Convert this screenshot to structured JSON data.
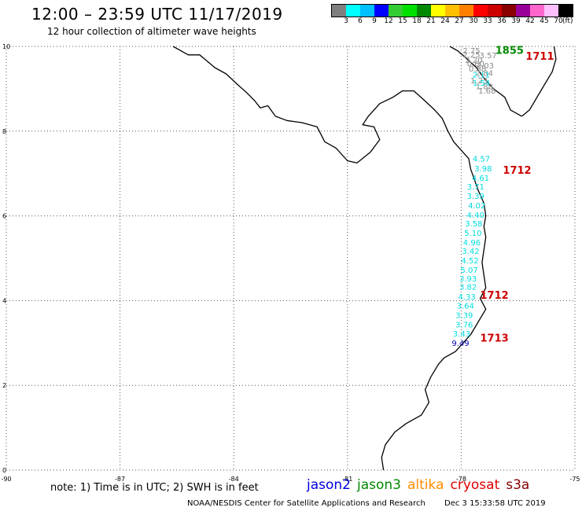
{
  "header": {
    "title": "12:00 – 23:59 UTC 11/17/2019",
    "subtitle": "12 hour collection of altimeter wave heights"
  },
  "color_scale": {
    "labels": [
      "3",
      "6",
      "9",
      "12",
      "15",
      "18",
      "21",
      "24",
      "27",
      "30",
      "33",
      "36",
      "39",
      "42",
      "45",
      "70"
    ],
    "unit": "(ft)",
    "colors": [
      "#7f7f7f",
      "#00ffff",
      "#00bfff",
      "#0000ff",
      "#33cc33",
      "#00e000",
      "#008800",
      "#ffff00",
      "#ffbf00",
      "#ff8000",
      "#ff0000",
      "#cc0000",
      "#880000",
      "#990099",
      "#ff66cc",
      "#ffbfff",
      "#000000"
    ]
  },
  "map": {
    "lon_ticks": [
      "-90",
      "-87",
      "-84",
      "-81",
      "-78",
      "-75"
    ],
    "lat_ticks": [
      "10",
      "8",
      "6",
      "4",
      "2",
      "0"
    ],
    "time_labels": [
      {
        "text": "1855",
        "lon": -77.1,
        "lat": 9.82,
        "color": "#008800"
      },
      {
        "text": "1711",
        "lon": -76.3,
        "lat": 9.68,
        "color": "#cc0000"
      },
      {
        "text": "1712",
        "lon": -76.9,
        "lat": 6.99,
        "color": "#cc0000"
      },
      {
        "text": "1712",
        "lon": -77.5,
        "lat": 4.04,
        "color": "#cc0000"
      },
      {
        "text": "1713",
        "lon": -77.5,
        "lat": 3.03,
        "color": "#cc0000"
      }
    ],
    "gray_track": [
      {
        "text": "2.75",
        "lon": -77.96,
        "lat": 9.83
      },
      {
        "text": "2.25",
        "lon": -77.96,
        "lat": 9.74
      },
      {
        "text": "3.57",
        "lon": -77.52,
        "lat": 9.72
      },
      {
        "text": "2.20",
        "lon": -77.9,
        "lat": 9.61
      },
      {
        "text": "0.60",
        "lon": -77.85,
        "lat": 9.53
      },
      {
        "text": "2.03",
        "lon": -77.6,
        "lat": 9.48
      },
      {
        "text": "0.88",
        "lon": -77.8,
        "lat": 9.41
      },
      {
        "text": "2.84",
        "lon": -77.62,
        "lat": 9.3
      },
      {
        "text": "1.23",
        "lon": -77.76,
        "lat": 9.13
      },
      {
        "text": "1.88",
        "lon": -77.62,
        "lat": 8.99
      },
      {
        "text": "1.68",
        "lon": -77.55,
        "lat": 8.89
      }
    ],
    "cyan_track": [
      {
        "text": "2.11",
        "lon": -77.7,
        "lat": 9.27,
        "color": "#00dddd"
      },
      {
        "text": "1.54",
        "lon": -77.7,
        "lat": 9.07,
        "color": "#00dddd"
      },
      {
        "text": "4.57",
        "lon": -77.7,
        "lat": 7.28,
        "color": "#00dddd"
      },
      {
        "text": "3.98",
        "lon": -77.65,
        "lat": 7.05,
        "color": "#00dddd"
      },
      {
        "text": "4.61",
        "lon": -77.72,
        "lat": 6.83,
        "color": "#00dddd"
      },
      {
        "text": "3.71",
        "lon": -77.85,
        "lat": 6.62,
        "color": "#00dddd"
      },
      {
        "text": "3.39",
        "lon": -77.85,
        "lat": 6.4,
        "color": "#00dddd"
      },
      {
        "text": "4.02",
        "lon": -77.82,
        "lat": 6.18,
        "color": "#00dddd"
      },
      {
        "text": "4.40",
        "lon": -77.85,
        "lat": 5.96,
        "color": "#00dddd"
      },
      {
        "text": "3.58",
        "lon": -77.9,
        "lat": 5.75,
        "color": "#00dddd"
      },
      {
        "text": "5.10",
        "lon": -77.92,
        "lat": 5.53,
        "color": "#00dddd"
      },
      {
        "text": "4.96",
        "lon": -77.95,
        "lat": 5.31,
        "color": "#00dddd"
      },
      {
        "text": "3.42",
        "lon": -77.98,
        "lat": 5.1,
        "color": "#00dddd"
      },
      {
        "text": "4.52",
        "lon": -78.0,
        "lat": 4.88,
        "color": "#00dddd"
      },
      {
        "text": "5.07",
        "lon": -78.02,
        "lat": 4.66,
        "color": "#00dddd"
      },
      {
        "text": "3.93",
        "lon": -78.05,
        "lat": 4.45,
        "color": "#00dddd"
      },
      {
        "text": "3.82",
        "lon": -78.05,
        "lat": 4.26,
        "color": "#00dddd"
      },
      {
        "text": "4.33",
        "lon": -78.08,
        "lat": 4.03,
        "color": "#00dddd"
      },
      {
        "text": "3.64",
        "lon": -78.12,
        "lat": 3.81,
        "color": "#00dddd"
      },
      {
        "text": "3.39",
        "lon": -78.15,
        "lat": 3.59,
        "color": "#00dddd"
      },
      {
        "text": "3.76",
        "lon": -78.15,
        "lat": 3.37,
        "color": "#00dddd"
      },
      {
        "text": "3.43",
        "lon": -78.22,
        "lat": 3.15,
        "color": "#00dddd"
      },
      {
        "text": "9.49",
        "lon": -78.25,
        "lat": 2.93,
        "color": "#0000aa"
      }
    ]
  },
  "footer": {
    "note": "note:  1) Time is in UTC;  2) SWH is in feet",
    "legend": [
      {
        "name": "jason2",
        "color": "#0000dd"
      },
      {
        "name": "jason3",
        "color": "#008800"
      },
      {
        "name": "altika",
        "color": "#ff8c00"
      },
      {
        "name": "cryosat",
        "color": "#dd0000"
      },
      {
        "name": "s3a",
        "color": "#880000"
      }
    ],
    "credit": "NOAA/NESDIS Center for Satellite Applications and Research",
    "timestamp": "Dec  3 15:33:58 UTC 2019"
  }
}
